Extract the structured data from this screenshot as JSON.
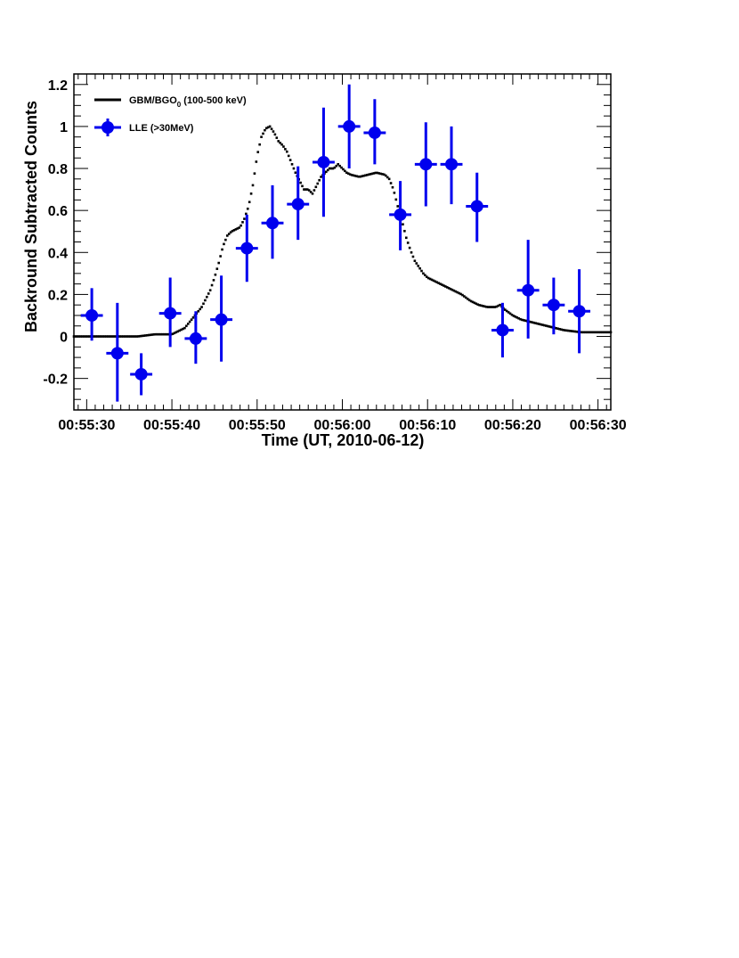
{
  "chart_data": {
    "type": "line",
    "title": "",
    "xlabel": "Time (UT, 2010-06-12)",
    "ylabel": "Backround Subtracted  Counts",
    "xlim": [
      "00:55:28.5",
      "00:56:31.5"
    ],
    "ylim": [
      -0.35,
      1.25
    ],
    "x_ticks": [
      "00:55:30",
      "00:55:40",
      "00:55:50",
      "00:56:00",
      "00:56:10",
      "00:56:20",
      "00:56:30"
    ],
    "y_ticks": [
      "-0.2",
      "0",
      "0.2",
      "0.4",
      "0.6",
      "0.8",
      "1",
      "1.2"
    ],
    "grid": false,
    "legend_position": "top-left",
    "legend": [
      {
        "label_main": "GBM/BGO",
        "label_sub": "0",
        "label_tail": " (100-500 keV)",
        "style": "line"
      },
      {
        "label_main": "LLE (>30MeV)",
        "style": "marker"
      }
    ],
    "colors": {
      "gbm": "#000000",
      "lle": "#0000ee",
      "frame": "#000000"
    },
    "series": [
      {
        "name": "GBM/BGO0 (100-500 keV)",
        "style": "dotted-line",
        "points": [
          [
            "00:55:28.5",
            0.0
          ],
          [
            "00:55:32.0",
            0.0
          ],
          [
            "00:55:36.0",
            0.0
          ],
          [
            "00:55:38.0",
            0.01
          ],
          [
            "00:55:40.0",
            0.01
          ],
          [
            "00:55:41.5",
            0.04
          ],
          [
            "00:55:42.5",
            0.09
          ],
          [
            "00:55:43.5",
            0.14
          ],
          [
            "00:55:44.5",
            0.22
          ],
          [
            "00:55:45.0",
            0.28
          ],
          [
            "00:55:45.5",
            0.35
          ],
          [
            "00:55:46.0",
            0.43
          ],
          [
            "00:55:46.5",
            0.48
          ],
          [
            "00:55:47.0",
            0.5
          ],
          [
            "00:55:48.0",
            0.52
          ],
          [
            "00:55:48.5",
            0.56
          ],
          [
            "00:55:49.0",
            0.62
          ],
          [
            "00:55:49.5",
            0.72
          ],
          [
            "00:55:50.0",
            0.86
          ],
          [
            "00:55:50.5",
            0.95
          ],
          [
            "00:55:51.0",
            0.99
          ],
          [
            "00:55:51.5",
            1.0
          ],
          [
            "00:55:52.0",
            0.97
          ],
          [
            "00:55:52.5",
            0.93
          ],
          [
            "00:55:53.0",
            0.91
          ],
          [
            "00:55:53.5",
            0.88
          ],
          [
            "00:55:54.0",
            0.83
          ],
          [
            "00:55:54.5",
            0.78
          ],
          [
            "00:55:55.0",
            0.74
          ],
          [
            "00:55:55.5",
            0.7
          ],
          [
            "00:55:56.0",
            0.7
          ],
          [
            "00:55:56.5",
            0.68
          ],
          [
            "00:55:57.0",
            0.72
          ],
          [
            "00:55:57.5",
            0.76
          ],
          [
            "00:55:58.5",
            0.8
          ],
          [
            "00:55:59.0",
            0.8
          ],
          [
            "00:55:59.5",
            0.82
          ],
          [
            "00:56:00.0",
            0.8
          ],
          [
            "00:56:00.5",
            0.78
          ],
          [
            "00:56:01.0",
            0.77
          ],
          [
            "00:56:02.0",
            0.76
          ],
          [
            "00:56:03.0",
            0.77
          ],
          [
            "00:56:04.0",
            0.78
          ],
          [
            "00:56:05.0",
            0.77
          ],
          [
            "00:56:05.5",
            0.75
          ],
          [
            "00:56:06.0",
            0.7
          ],
          [
            "00:56:06.5",
            0.62
          ],
          [
            "00:56:07.0",
            0.55
          ],
          [
            "00:56:07.5",
            0.47
          ],
          [
            "00:56:08.0",
            0.41
          ],
          [
            "00:56:08.5",
            0.36
          ],
          [
            "00:56:09.0",
            0.33
          ],
          [
            "00:56:09.5",
            0.3
          ],
          [
            "00:56:10.0",
            0.28
          ],
          [
            "00:56:11.0",
            0.26
          ],
          [
            "00:56:12.0",
            0.24
          ],
          [
            "00:56:13.0",
            0.22
          ],
          [
            "00:56:14.0",
            0.2
          ],
          [
            "00:56:15.0",
            0.17
          ],
          [
            "00:56:16.0",
            0.15
          ],
          [
            "00:56:17.0",
            0.14
          ],
          [
            "00:56:18.0",
            0.14
          ],
          [
            "00:56:18.5",
            0.15
          ],
          [
            "00:56:19.0",
            0.13
          ],
          [
            "00:56:20.0",
            0.1
          ],
          [
            "00:56:21.0",
            0.08
          ],
          [
            "00:56:22.0",
            0.07
          ],
          [
            "00:56:23.0",
            0.06
          ],
          [
            "00:56:24.0",
            0.05
          ],
          [
            "00:56:25.0",
            0.04
          ],
          [
            "00:56:26.0",
            0.03
          ],
          [
            "00:56:28.0",
            0.02
          ],
          [
            "00:56:31.5",
            0.02
          ]
        ]
      },
      {
        "name": "LLE (>30MeV)",
        "style": "points-with-errorbars",
        "points": [
          {
            "x": "00:55:30.6",
            "xerr": 1.3,
            "y": 0.1,
            "ylo": -0.02,
            "yhi": 0.23
          },
          {
            "x": "00:55:33.6",
            "xerr": 1.3,
            "y": -0.08,
            "ylo": -0.31,
            "yhi": 0.16
          },
          {
            "x": "00:55:36.4",
            "xerr": 1.3,
            "y": -0.18,
            "ylo": -0.28,
            "yhi": -0.08
          },
          {
            "x": "00:55:39.8",
            "xerr": 1.3,
            "y": 0.11,
            "ylo": -0.05,
            "yhi": 0.28
          },
          {
            "x": "00:55:42.8",
            "xerr": 1.3,
            "y": -0.01,
            "ylo": -0.13,
            "yhi": 0.12
          },
          {
            "x": "00:55:45.8",
            "xerr": 1.3,
            "y": 0.08,
            "ylo": -0.12,
            "yhi": 0.29
          },
          {
            "x": "00:55:48.8",
            "xerr": 1.3,
            "y": 0.42,
            "ylo": 0.26,
            "yhi": 0.58
          },
          {
            "x": "00:55:51.8",
            "xerr": 1.3,
            "y": 0.54,
            "ylo": 0.37,
            "yhi": 0.72
          },
          {
            "x": "00:55:54.8",
            "xerr": 1.3,
            "y": 0.63,
            "ylo": 0.46,
            "yhi": 0.81
          },
          {
            "x": "00:55:57.8",
            "xerr": 1.3,
            "y": 0.83,
            "ylo": 0.57,
            "yhi": 1.09
          },
          {
            "x": "00:56:00.8",
            "xerr": 1.3,
            "y": 1.0,
            "ylo": 0.8,
            "yhi": 1.2
          },
          {
            "x": "00:56:03.8",
            "xerr": 1.3,
            "y": 0.97,
            "ylo": 0.82,
            "yhi": 1.13
          },
          {
            "x": "00:56:06.8",
            "xerr": 1.3,
            "y": 0.58,
            "ylo": 0.41,
            "yhi": 0.74
          },
          {
            "x": "00:56:09.8",
            "xerr": 1.3,
            "y": 0.82,
            "ylo": 0.62,
            "yhi": 1.02
          },
          {
            "x": "00:56:12.8",
            "xerr": 1.3,
            "y": 0.82,
            "ylo": 0.63,
            "yhi": 1.0
          },
          {
            "x": "00:56:15.8",
            "xerr": 1.3,
            "y": 0.62,
            "ylo": 0.45,
            "yhi": 0.78
          },
          {
            "x": "00:56:18.8",
            "xerr": 1.3,
            "y": 0.03,
            "ylo": -0.1,
            "yhi": 0.16
          },
          {
            "x": "00:56:21.8",
            "xerr": 1.3,
            "y": 0.22,
            "ylo": -0.01,
            "yhi": 0.46
          },
          {
            "x": "00:56:24.8",
            "xerr": 1.3,
            "y": 0.15,
            "ylo": 0.01,
            "yhi": 0.28
          },
          {
            "x": "00:56:27.8",
            "xerr": 1.3,
            "y": 0.12,
            "ylo": -0.08,
            "yhi": 0.32
          }
        ]
      }
    ]
  }
}
